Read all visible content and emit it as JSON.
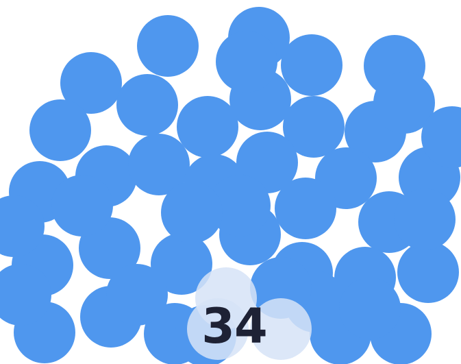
{
  "game": {
    "counter": "34",
    "colors": {
      "background": "#ffffff",
      "dot": "#4f97ee",
      "dot_faded": "#d6e3f7",
      "counter_text": "#1e2235"
    },
    "dots": [
      {
        "state": "active"
      },
      {
        "state": "active"
      },
      {
        "state": "active"
      },
      {
        "state": "active"
      },
      {
        "state": "active"
      },
      {
        "state": "active"
      },
      {
        "state": "active"
      },
      {
        "state": "active"
      },
      {
        "state": "active"
      },
      {
        "state": "active"
      },
      {
        "state": "active"
      },
      {
        "state": "active"
      },
      {
        "state": "active"
      },
      {
        "state": "active"
      },
      {
        "state": "active"
      },
      {
        "state": "active"
      },
      {
        "state": "active"
      },
      {
        "state": "active"
      },
      {
        "state": "active"
      },
      {
        "state": "active"
      },
      {
        "state": "active"
      },
      {
        "state": "active"
      },
      {
        "state": "active"
      },
      {
        "state": "active"
      },
      {
        "state": "active"
      },
      {
        "state": "active"
      },
      {
        "state": "active"
      },
      {
        "state": "active"
      },
      {
        "state": "active"
      },
      {
        "state": "active"
      },
      {
        "state": "active"
      },
      {
        "state": "active"
      },
      {
        "state": "active"
      },
      {
        "state": "active"
      },
      {
        "state": "active"
      },
      {
        "state": "active"
      },
      {
        "state": "active"
      },
      {
        "state": "active"
      },
      {
        "state": "active"
      },
      {
        "state": "active"
      },
      {
        "state": "active"
      },
      {
        "state": "active"
      },
      {
        "state": "active"
      },
      {
        "state": "active"
      },
      {
        "state": "active"
      },
      {
        "state": "active"
      },
      {
        "state": "faded"
      },
      {
        "state": "faded"
      },
      {
        "state": "faded"
      }
    ]
  }
}
